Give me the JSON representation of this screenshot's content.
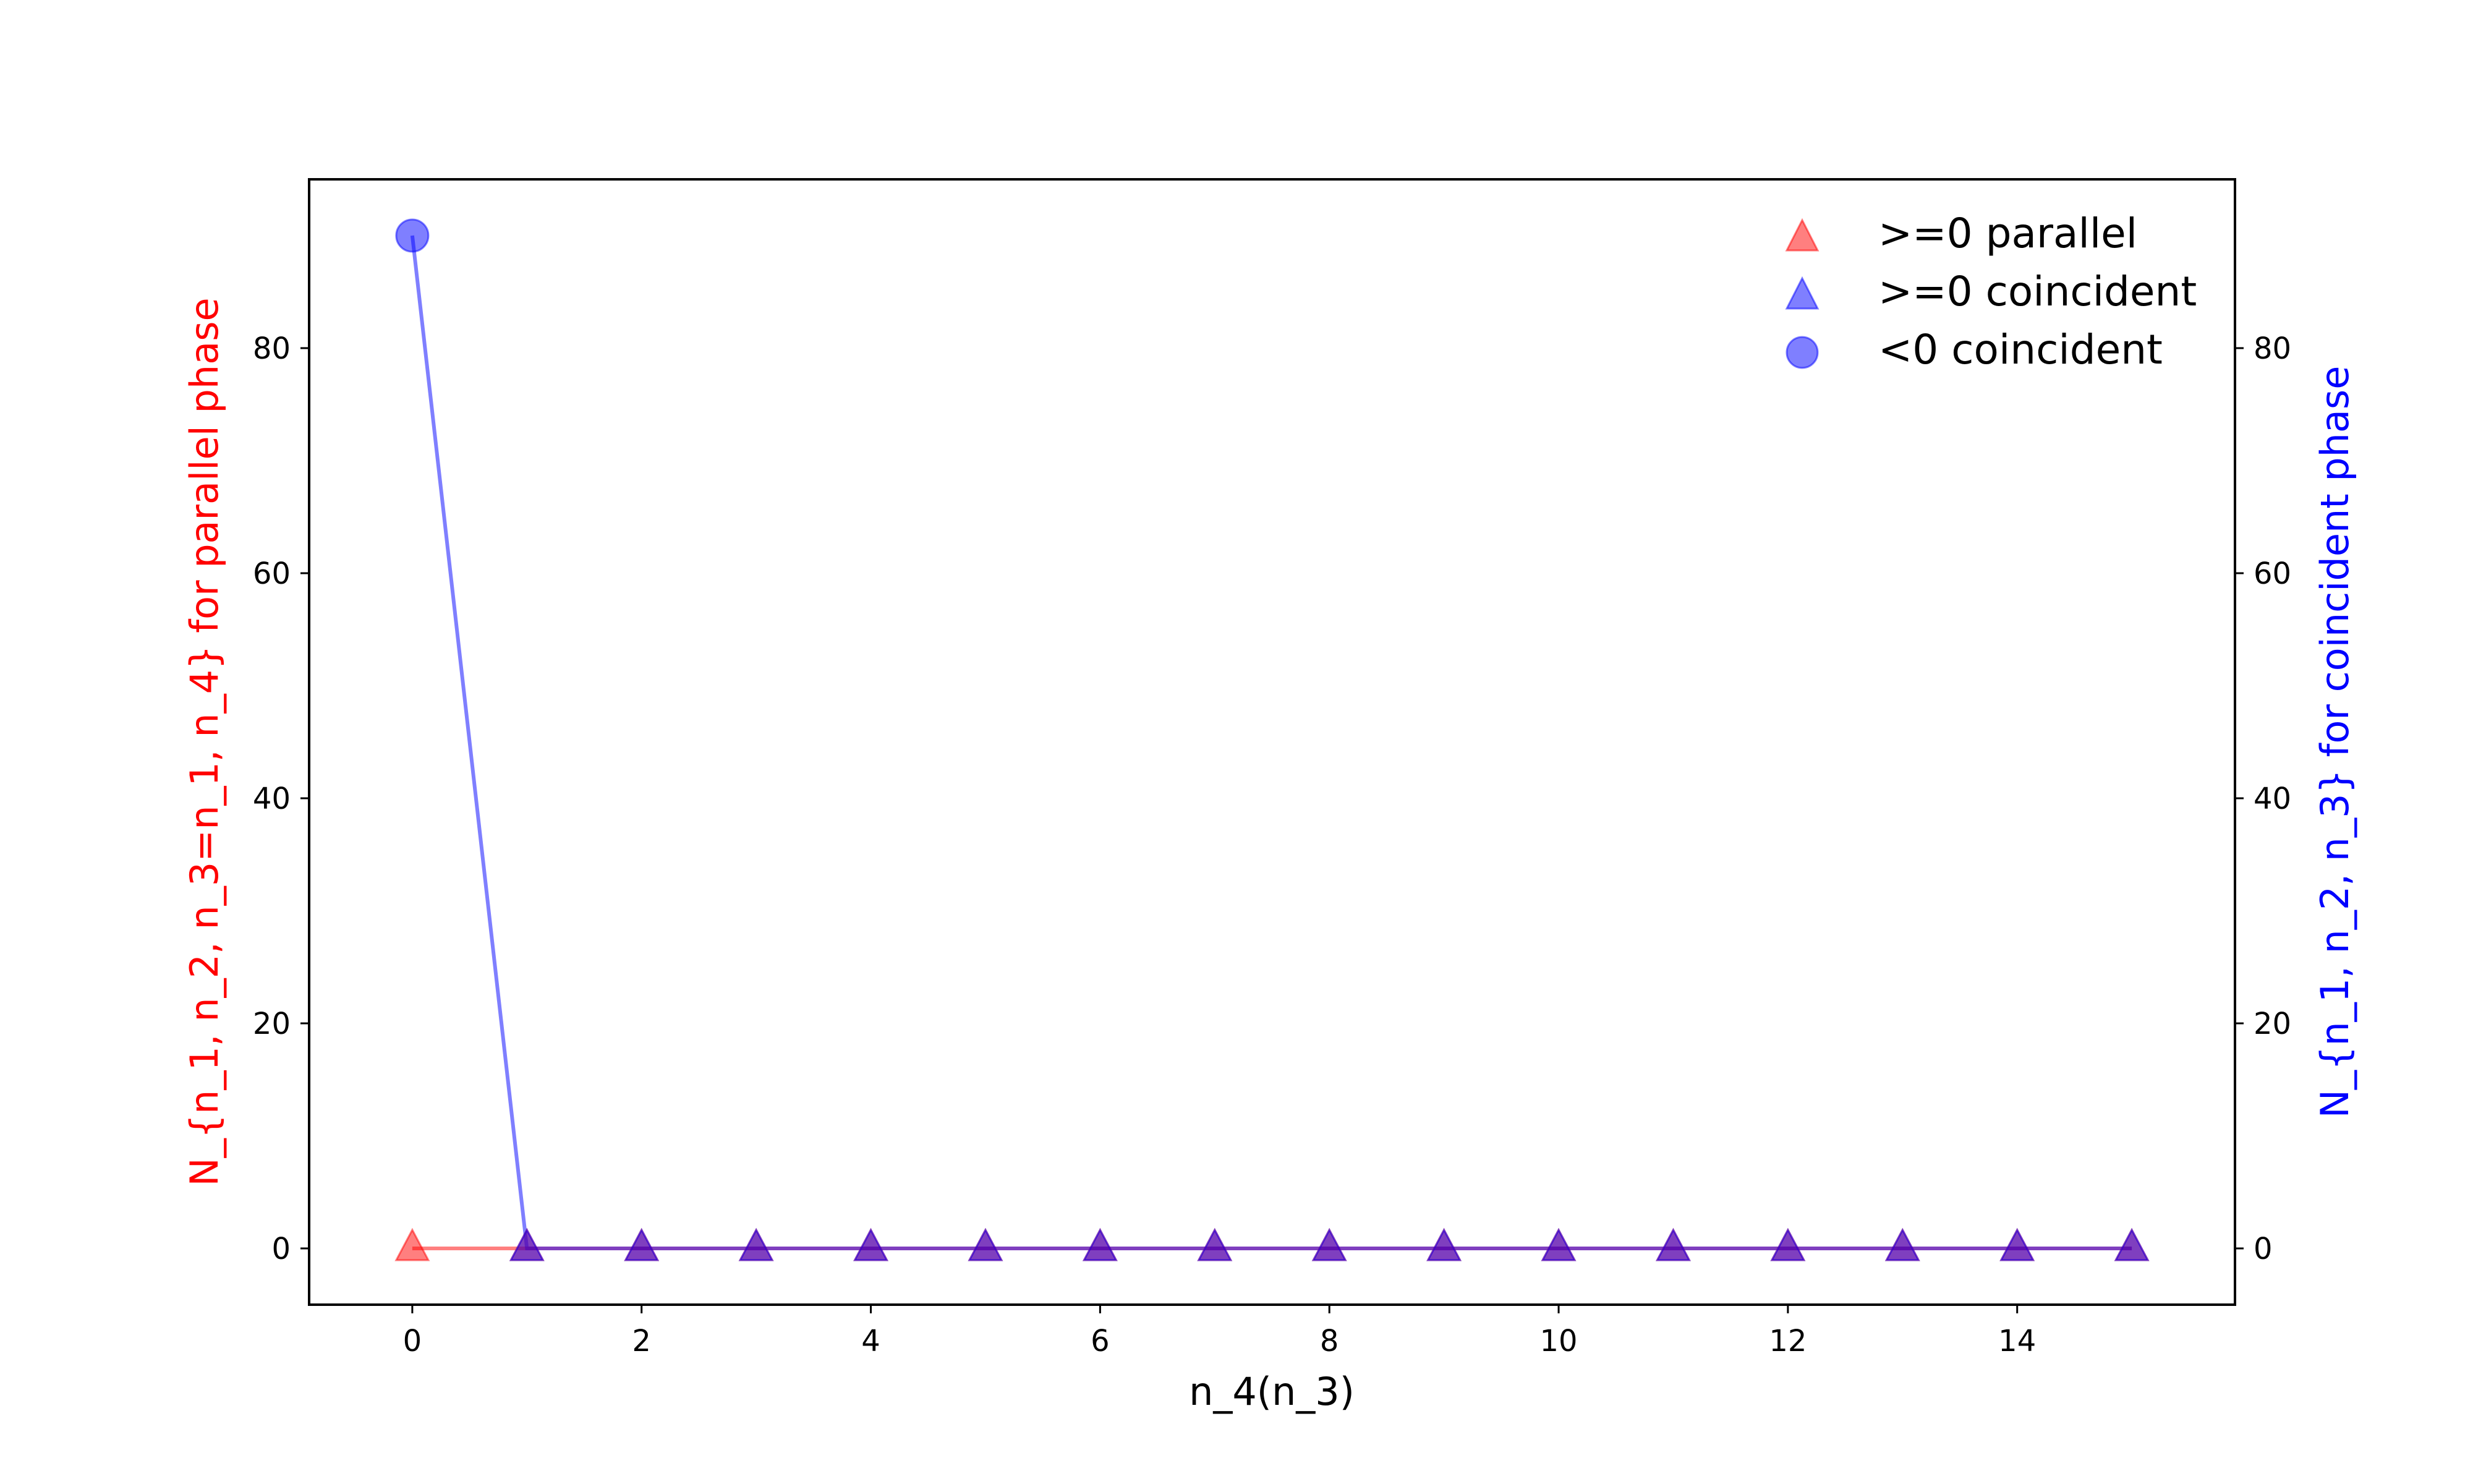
{
  "chart_data": {
    "type": "line",
    "title": "",
    "xlabel": "n_4(n_3)",
    "ylabel_left": "N_{n_1, n_2, n_3=n_1, n_4} for parallel phase",
    "ylabel_right": "N_{n_1, n_2, n_3} for coincident phase",
    "xlim": [
      -0.9,
      15.9
    ],
    "ylim": [
      -5,
      95
    ],
    "x_ticks": [
      0,
      2,
      4,
      6,
      8,
      10,
      12,
      14
    ],
    "y_ticks": [
      0,
      20,
      40,
      60,
      80
    ],
    "grid": false,
    "legend_position": "top-right",
    "left_axis_color": "#ff0000",
    "right_axis_color": "#0000ff",
    "series": [
      {
        "name": ">=0 parallel",
        "axis": "left",
        "marker": "triangle",
        "color": "#ff0000",
        "alpha": 0.5,
        "x": [
          0,
          1,
          2,
          3,
          4,
          5,
          6,
          7,
          8,
          9,
          10,
          11,
          12,
          13,
          14,
          15
        ],
        "values": [
          0,
          0,
          0,
          0,
          0,
          0,
          0,
          0,
          0,
          0,
          0,
          0,
          0,
          0,
          0,
          0
        ]
      },
      {
        "name": ">=0 coincident",
        "axis": "right",
        "marker": "triangle",
        "color": "#0000ff",
        "alpha": 0.5,
        "x": [
          1,
          2,
          3,
          4,
          5,
          6,
          7,
          8,
          9,
          10,
          11,
          12,
          13,
          14,
          15
        ],
        "values": [
          0,
          0,
          0,
          0,
          0,
          0,
          0,
          0,
          0,
          0,
          0,
          0,
          0,
          0,
          0
        ]
      },
      {
        "name": "<0 coincident",
        "axis": "right",
        "marker": "circle",
        "color": "#0000ff",
        "alpha": 0.5,
        "x": [
          0
        ],
        "values": [
          90
        ]
      }
    ],
    "connector_line_right": {
      "color": "#0000ff",
      "x": [
        0,
        1,
        2,
        3,
        4,
        5,
        6,
        7,
        8,
        9,
        10,
        11,
        12,
        13,
        14,
        15
      ],
      "values": [
        90,
        0,
        0,
        0,
        0,
        0,
        0,
        0,
        0,
        0,
        0,
        0,
        0,
        0,
        0,
        0
      ]
    }
  }
}
